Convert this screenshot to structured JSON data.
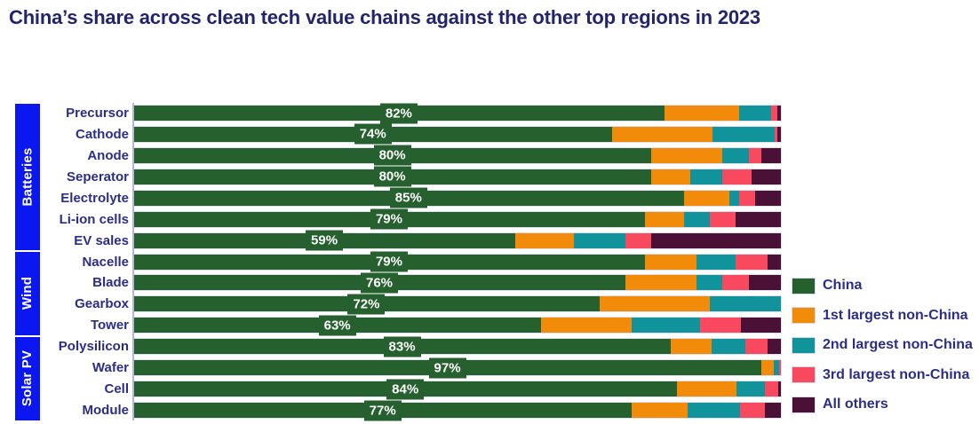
{
  "title": "China’s share across clean tech value chains against the other top regions in 2023",
  "colors": {
    "series": [
      "#26602f",
      "#f28a0a",
      "#11939b",
      "#f9495e",
      "#4b1036"
    ],
    "group_band": "#0b17f0",
    "label_text": "#2b2e87",
    "title_text": "#22246c",
    "axis_line": "#b3b5da",
    "chip_background": "#26602f",
    "background": "#ffffff"
  },
  "legend": [
    {
      "label": "China"
    },
    {
      "label": "1st largest non-China"
    },
    {
      "label": "2nd largest non-China"
    },
    {
      "label": "3rd largest non-China"
    },
    {
      "label": "All others"
    }
  ],
  "chart_data": {
    "type": "bar",
    "orientation": "horizontal",
    "stacked": true,
    "value_unit": "%",
    "x_range": [
      0,
      100
    ],
    "grid": false,
    "legend_position": "right",
    "series_names": [
      "China",
      "1st largest non-China",
      "2nd largest non-China",
      "3rd largest non-China",
      "All others"
    ],
    "groups": [
      {
        "name": "Batteries",
        "items": [
          {
            "label": "Precursor",
            "china_label": "82%",
            "values": [
              82,
              11.5,
              5,
              1,
              0.5
            ]
          },
          {
            "label": "Cathode",
            "china_label": "74%",
            "values": [
              74,
              15.5,
              9.5,
              0.5,
              0.5
            ]
          },
          {
            "label": "Anode",
            "china_label": "80%",
            "values": [
              80,
              11,
              4,
              2,
              3
            ]
          },
          {
            "label": "Seperator",
            "china_label": "80%",
            "values": [
              80,
              6,
              5,
              4.5,
              4.5
            ]
          },
          {
            "label": "Electrolyte",
            "china_label": "85%",
            "values": [
              85,
              7,
              1.5,
              2.5,
              4
            ]
          },
          {
            "label": "Li-ion cells",
            "china_label": "79%",
            "values": [
              79,
              6,
              4,
              4,
              7
            ]
          },
          {
            "label": "EV sales",
            "china_label": "59%",
            "values": [
              59,
              9,
              8,
              4,
              20
            ]
          }
        ]
      },
      {
        "name": "Wind",
        "items": [
          {
            "label": "Nacelle",
            "china_label": "79%",
            "values": [
              79,
              8,
              6,
              5,
              2
            ]
          },
          {
            "label": "Blade",
            "china_label": "76%",
            "values": [
              76,
              11,
              4,
              4,
              5
            ]
          },
          {
            "label": "Gearbox",
            "china_label": "72%",
            "values": [
              72,
              17,
              11,
              0,
              0
            ]
          },
          {
            "label": "Tower",
            "china_label": "63%",
            "values": [
              63,
              14,
              10.5,
              6.3,
              6.2
            ]
          }
        ]
      },
      {
        "name": "Solar PV",
        "items": [
          {
            "label": "Polysilicon",
            "china_label": "83%",
            "values": [
              83,
              6.3,
              5.2,
              3.5,
              2
            ]
          },
          {
            "label": "Wafer",
            "china_label": "97%",
            "values": [
              97,
              1.9,
              0.8,
              0.3,
              0
            ]
          },
          {
            "label": "Cell",
            "china_label": "84%",
            "values": [
              84,
              9.2,
              4.4,
              2,
              0.4
            ]
          },
          {
            "label": "Module",
            "china_label": "77%",
            "values": [
              77,
              8.6,
              8.1,
              3.9,
              2.4
            ]
          }
        ]
      }
    ]
  }
}
